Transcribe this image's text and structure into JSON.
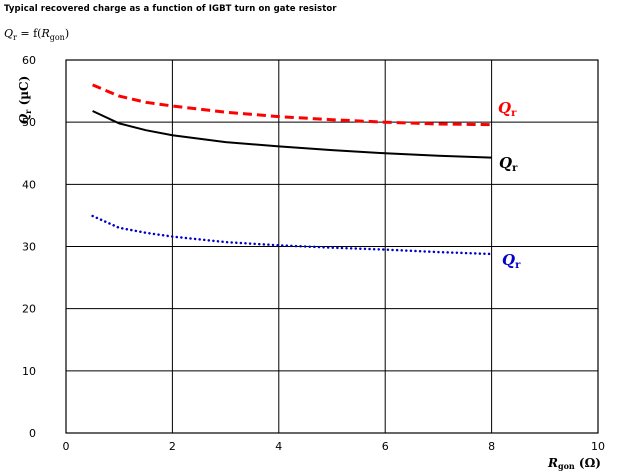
{
  "title": "Typical recovered charge as a function of IGBT turn on gate resistor",
  "formula": {
    "q": "Q",
    "q_sub": "r",
    "mid": " = f(",
    "r": "R",
    "r_sub": "gon",
    "end": ")"
  },
  "chart_data": {
    "type": "line",
    "xlabel": {
      "main": "R",
      "sub": "gon",
      "unit": " (Ω)"
    },
    "ylabel": {
      "main": "Q",
      "sub": "r",
      "unit": " (µC)"
    },
    "xlim": [
      0,
      10
    ],
    "ylim": [
      0,
      60
    ],
    "xticks": [
      "0",
      "2",
      "4",
      "6",
      "8",
      "10"
    ],
    "yticks": [
      "0",
      "10",
      "20",
      "30",
      "40",
      "50",
      "60"
    ],
    "grid": true,
    "series": [
      {
        "label_main": "Q",
        "label_sub": "r",
        "color": "#ff0000",
        "style": "dashed",
        "x": [
          0.5,
          1,
          1.5,
          2,
          3,
          4,
          5,
          6,
          7,
          8
        ],
        "y": [
          56,
          54.2,
          53.2,
          52.6,
          51.6,
          50.9,
          50.4,
          50.0,
          49.7,
          49.6
        ]
      },
      {
        "label_main": "Q",
        "label_sub": "r",
        "color": "#000000",
        "style": "solid",
        "x": [
          0.5,
          1,
          1.5,
          2,
          3,
          4,
          5,
          6,
          7,
          8
        ],
        "y": [
          51.8,
          49.8,
          48.7,
          47.9,
          46.8,
          46.1,
          45.5,
          45.0,
          44.6,
          44.3
        ]
      },
      {
        "label_main": "Q",
        "label_sub": "r",
        "color": "#0000cc",
        "style": "dotted",
        "x": [
          0.5,
          1,
          1.5,
          2,
          3,
          4,
          5,
          6,
          7,
          8
        ],
        "y": [
          34.9,
          33.0,
          32.2,
          31.6,
          30.7,
          30.2,
          29.8,
          29.5,
          29.1,
          28.8
        ]
      }
    ]
  }
}
